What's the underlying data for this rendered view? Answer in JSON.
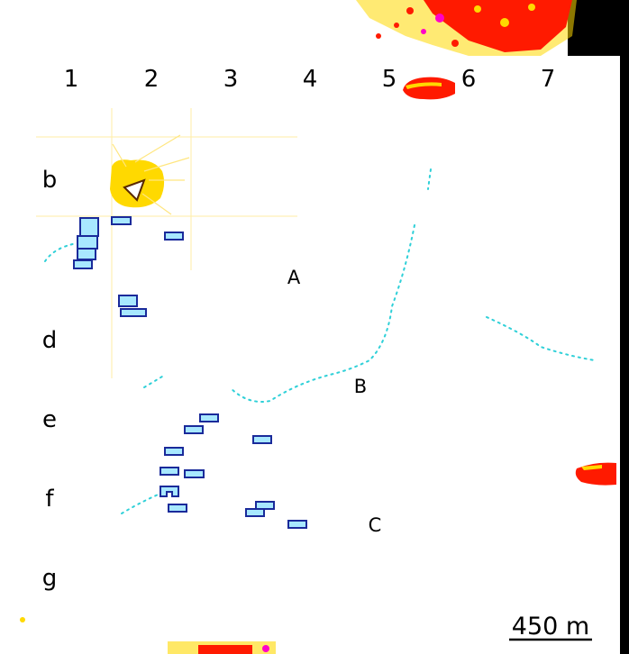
{
  "columns": [
    "1",
    "2",
    "3",
    "4",
    "5",
    "6",
    "7"
  ],
  "rows": [
    "b",
    "d",
    "e",
    "f",
    "g"
  ],
  "points": [
    "A",
    "B",
    "C"
  ],
  "scale_bar": {
    "label": "450 m"
  },
  "colors": {
    "paper": "#ffffff",
    "dark": "#000000",
    "hot": "#ff1a00",
    "warm": "#ffd900",
    "magenta": "#ff00c8",
    "water": "#2fd0d8",
    "building_fill": "#a8e8ff",
    "building_edge": "#1a2a9a"
  }
}
